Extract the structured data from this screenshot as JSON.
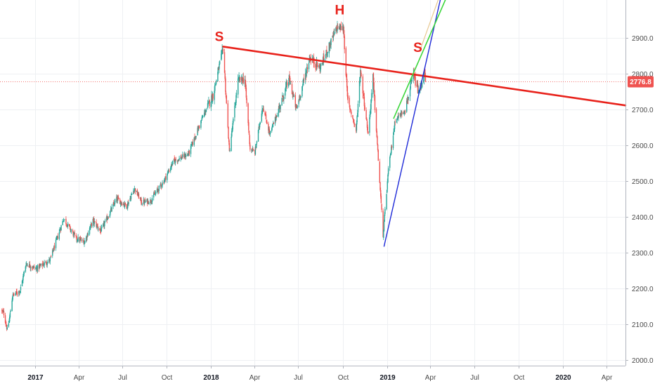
{
  "chart_data": {
    "type": "candlestick",
    "title": "",
    "xlabel": "",
    "ylabel": "",
    "xlim": [
      "2016-10-20",
      "2020-05-10"
    ],
    "ylim": [
      1985,
      3005
    ],
    "grid": true,
    "y_ticks": [
      "2000.0",
      "2100.0",
      "2200.0",
      "2300.0",
      "2400.0",
      "2500.0",
      "2600.0",
      "2700.0",
      "2800.0",
      "2900.0"
    ],
    "x_ticks": [
      {
        "label": "2017",
        "date": "2017-01-01",
        "bold": true
      },
      {
        "label": "Apr",
        "date": "2017-04-01",
        "bold": false
      },
      {
        "label": "Jul",
        "date": "2017-07-01",
        "bold": false
      },
      {
        "label": "Oct",
        "date": "2017-10-01",
        "bold": false
      },
      {
        "label": "2018",
        "date": "2018-01-01",
        "bold": true
      },
      {
        "label": "Apr",
        "date": "2018-04-01",
        "bold": false
      },
      {
        "label": "Jul",
        "date": "2018-07-01",
        "bold": false
      },
      {
        "label": "Oct",
        "date": "2018-10-01",
        "bold": false
      },
      {
        "label": "2019",
        "date": "2019-01-01",
        "bold": true
      },
      {
        "label": "Apr",
        "date": "2019-04-01",
        "bold": false
      },
      {
        "label": "Jul",
        "date": "2019-07-01",
        "bold": false
      },
      {
        "label": "Oct",
        "date": "2019-10-01",
        "bold": false
      },
      {
        "label": "2020",
        "date": "2020-01-01",
        "bold": true
      },
      {
        "label": "Apr",
        "date": "2020-04-01",
        "bold": false
      }
    ],
    "price_path": [
      [
        "2016-10-22",
        2140
      ],
      [
        "2016-10-28",
        2130
      ],
      [
        "2016-11-04",
        2085
      ],
      [
        "2016-11-08",
        2110
      ],
      [
        "2016-11-15",
        2180
      ],
      [
        "2016-12-01",
        2195
      ],
      [
        "2016-12-13",
        2270
      ],
      [
        "2017-01-03",
        2255
      ],
      [
        "2017-02-01",
        2280
      ],
      [
        "2017-03-01",
        2395
      ],
      [
        "2017-03-27",
        2340
      ],
      [
        "2017-04-13",
        2330
      ],
      [
        "2017-05-01",
        2390
      ],
      [
        "2017-05-17",
        2360
      ],
      [
        "2017-06-19",
        2450
      ],
      [
        "2017-07-10",
        2430
      ],
      [
        "2017-07-26",
        2480
      ],
      [
        "2017-08-10",
        2440
      ],
      [
        "2017-08-28",
        2445
      ],
      [
        "2017-09-25",
        2500
      ],
      [
        "2017-10-15",
        2555
      ],
      [
        "2017-11-15",
        2575
      ],
      [
        "2017-12-15",
        2680
      ],
      [
        "2018-01-05",
        2740
      ],
      [
        "2018-01-26",
        2870
      ],
      [
        "2018-02-08",
        2580
      ],
      [
        "2018-02-26",
        2780
      ],
      [
        "2018-03-12",
        2785
      ],
      [
        "2018-03-23",
        2590
      ],
      [
        "2018-04-02",
        2580
      ],
      [
        "2018-04-18",
        2710
      ],
      [
        "2018-05-03",
        2630
      ],
      [
        "2018-06-12",
        2785
      ],
      [
        "2018-06-27",
        2700
      ],
      [
        "2018-07-25",
        2845
      ],
      [
        "2018-08-15",
        2815
      ],
      [
        "2018-09-20",
        2930
      ],
      [
        "2018-10-03",
        2925
      ],
      [
        "2018-10-11",
        2730
      ],
      [
        "2018-10-29",
        2640
      ],
      [
        "2018-11-07",
        2810
      ],
      [
        "2018-11-23",
        2630
      ],
      [
        "2018-12-03",
        2790
      ],
      [
        "2018-12-24",
        2350
      ],
      [
        "2019-01-04",
        2530
      ],
      [
        "2019-01-18",
        2670
      ],
      [
        "2019-02-08",
        2700
      ],
      [
        "2019-02-25",
        2795
      ],
      [
        "2019-03-08",
        2745
      ],
      [
        "2019-03-20",
        2800
      ],
      [
        "2019-03-22",
        2776.8
      ]
    ],
    "last_price": "2776.8",
    "last_price_color": "#ef5350",
    "up_color": "#26a69a",
    "down_color": "#ef5350",
    "annotations": [
      {
        "text": "S",
        "date": "2018-01-18",
        "price": 2890
      },
      {
        "text": "H",
        "date": "2018-09-25",
        "price": 2965
      },
      {
        "text": "S",
        "date": "2019-03-06",
        "price": 2860
      }
    ],
    "trend_lines": [
      {
        "name": "neckline",
        "color": "#e8221b",
        "width": 2.6,
        "from": [
          "2018-01-26",
          2875
        ],
        "to": [
          "2020-05-10",
          2711
        ]
      },
      {
        "name": "steep-support",
        "color": "#1e2ad8",
        "width": 1.4,
        "from": [
          "2018-12-26",
          2318
        ],
        "to": [
          "2019-05-01",
          3060
        ]
      },
      {
        "name": "channel-upper",
        "color": "#3cd63c",
        "width": 1.6,
        "from": [
          "2019-01-15",
          2675
        ],
        "to": [
          "2019-05-20",
          3060
        ]
      },
      {
        "name": "channel-upper-faint",
        "color": "#e8c890",
        "width": 1.2,
        "from": [
          "2019-03-12",
          2870
        ],
        "to": [
          "2019-05-02",
          3060
        ]
      }
    ]
  }
}
